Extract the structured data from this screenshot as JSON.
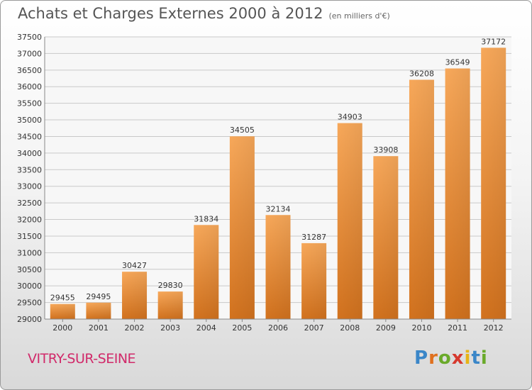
{
  "header": {
    "title": "Achats et Charges Externes 2000 à 2012",
    "unit": "(en milliers d'€)"
  },
  "footer": {
    "city": "VITRY-SUR-SEINE",
    "logo_letters": [
      "P",
      "r",
      "o",
      "x",
      "i",
      "t",
      "i"
    ],
    "logo_colors": [
      "#3a86c8",
      "#e0701e",
      "#6aaa2a",
      "#d6392e",
      "#e7b416",
      "#3a86c8",
      "#6aaa2a"
    ]
  },
  "chart_data": {
    "type": "bar",
    "categories": [
      "2000",
      "2001",
      "2002",
      "2003",
      "2004",
      "2005",
      "2006",
      "2007",
      "2008",
      "2009",
      "2010",
      "2011",
      "2012"
    ],
    "values": [
      29455,
      29495,
      30427,
      29830,
      31834,
      34505,
      32134,
      31287,
      34903,
      33908,
      36208,
      36549,
      37172
    ],
    "title": "Achats et Charges Externes 2000 à 2012",
    "ylim": [
      29000,
      37500
    ],
    "yticks": [
      29000,
      29500,
      30000,
      30500,
      31000,
      31500,
      32000,
      32500,
      33000,
      33500,
      34000,
      34500,
      35000,
      35500,
      36000,
      36500,
      37000,
      37500
    ],
    "grid": true,
    "bar_color_top": "#f7a85a",
    "bar_color_bottom": "#d2721e"
  }
}
